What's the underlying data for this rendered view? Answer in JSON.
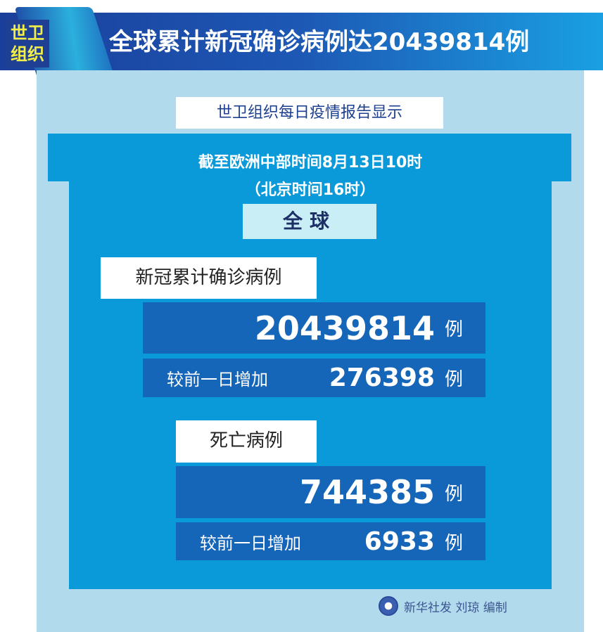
{
  "header": {
    "badge": "世卫组织",
    "badge_line1": "世卫",
    "badge_line2": "组织",
    "title": "全球累计新冠确诊病例达20439814例"
  },
  "subtitle": "世卫组织每日疫情报告显示",
  "time": {
    "line1": "截至欧洲中部时间8月13日10时",
    "line2": "（北京时间16时）"
  },
  "scope": "全球",
  "cases": {
    "label": "新冠累计确诊病例",
    "total": "20439814",
    "unit": "例",
    "increase_label": "较前一日增加",
    "increase": "276398"
  },
  "deaths": {
    "label": "死亡病例",
    "total": "744385",
    "unit": "例",
    "increase_label": "较前一日增加",
    "increase": "6933"
  },
  "footer": {
    "credit": "新华社发 刘琼 编制",
    "logo_icon": "xinhua-logo-icon"
  },
  "colors": {
    "header_blue": "#1d58b5",
    "panel": "#b2daed",
    "inner": "#0b9ad9",
    "box": "#1565b8",
    "badge_text": "#f2ee4a"
  }
}
